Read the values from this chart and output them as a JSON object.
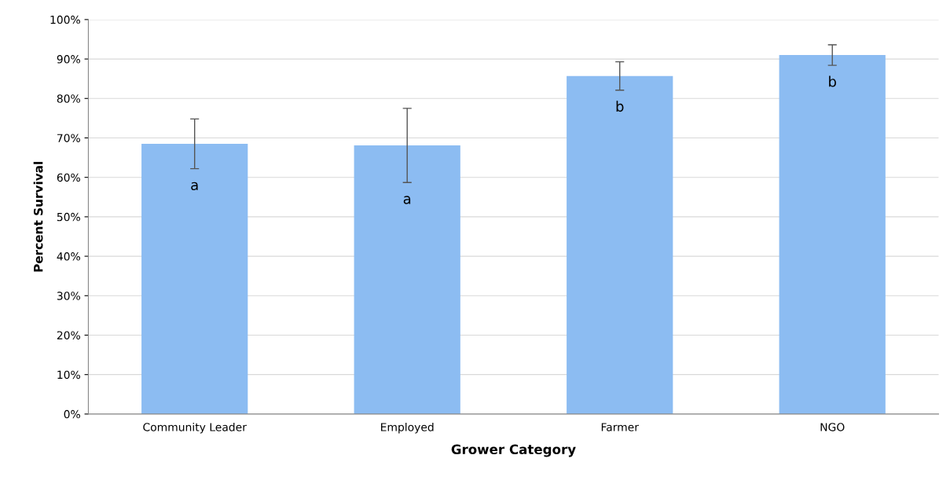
{
  "chart_data": {
    "type": "bar",
    "xlabel": "Grower Category",
    "ylabel": "Percent Survival",
    "categories": [
      "Community Leader",
      "Employed",
      "Farmer",
      "NGO"
    ],
    "values": [
      68.5,
      68.1,
      85.7,
      91.0
    ],
    "errors": [
      6.3,
      9.4,
      3.6,
      2.6
    ],
    "color": "#8cbcf2",
    "ylim": [
      0,
      100
    ],
    "yticks": [
      {
        "value": 0,
        "label": "0%"
      },
      {
        "value": 10,
        "label": "10%"
      },
      {
        "value": 20,
        "label": "20%"
      },
      {
        "value": 30,
        "label": "30%"
      },
      {
        "value": 40,
        "label": "40%"
      },
      {
        "value": 50,
        "label": "50%"
      },
      {
        "value": 60,
        "label": "60%"
      },
      {
        "value": 70,
        "label": "70%"
      },
      {
        "value": 80,
        "label": "80%"
      },
      {
        "value": 90,
        "label": "90%"
      },
      {
        "value": 100,
        "label": "100%"
      }
    ],
    "grid": "y",
    "annotations": [
      "a",
      "a",
      "b",
      "b"
    ]
  }
}
